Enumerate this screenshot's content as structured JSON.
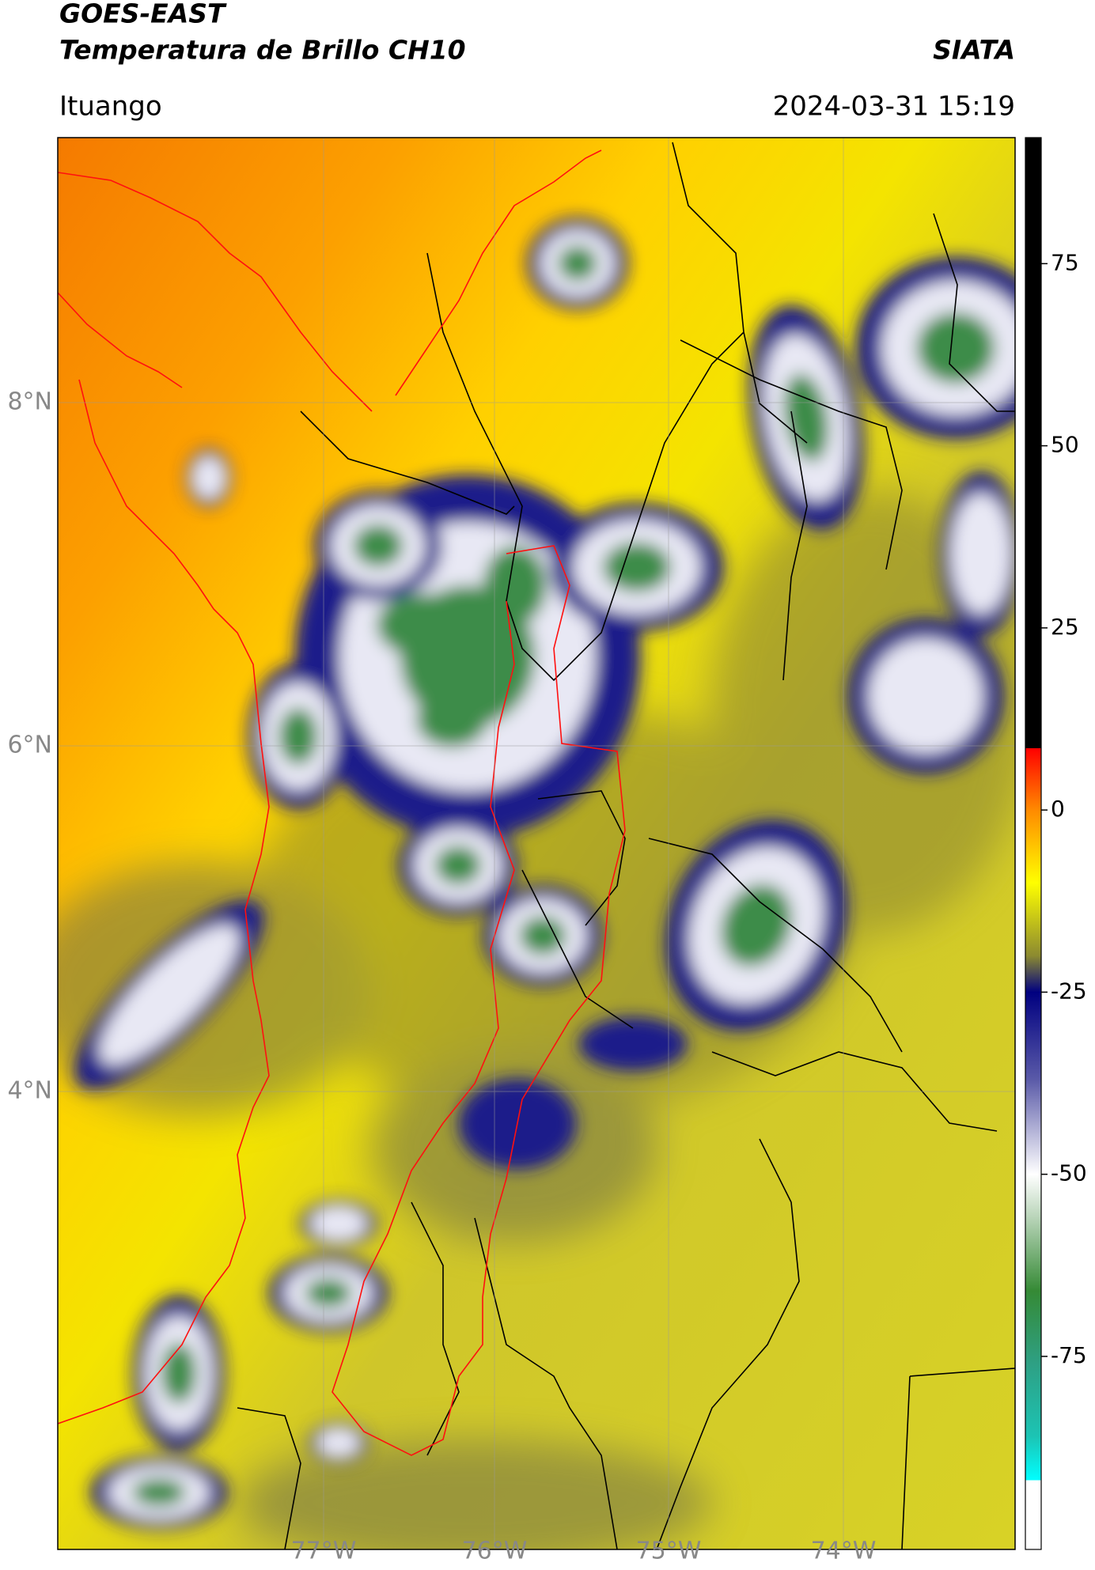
{
  "header": {
    "title_line1": "GOES-EAST",
    "title_line2": "Temperatura de Brillo CH10",
    "organization": "SIATA",
    "location": "Ituango",
    "datetime": "2024-03-31 15:19"
  },
  "map": {
    "lat_labels": [
      "8°N",
      "6°N",
      "4°N"
    ],
    "lon_labels": [
      "77°W",
      "76°W",
      "75°W",
      "74°W"
    ]
  },
  "colorbar": {
    "lim": [
      -101.5,
      92.3
    ],
    "ticks": [
      75,
      50,
      25,
      0,
      -25,
      -50,
      -75
    ],
    "stops": [
      {
        "value": 92.3,
        "color": "#000000"
      },
      {
        "value": 8.5,
        "color": "#000000"
      },
      {
        "value": 8.5,
        "color": "#ff0000"
      },
      {
        "value": 0,
        "color": "#ff8a00"
      },
      {
        "value": -10,
        "color": "#ffff00"
      },
      {
        "value": -20,
        "color": "#8c8a30"
      },
      {
        "value": -25,
        "color": "#000080"
      },
      {
        "value": -37,
        "color": "#5a5aa8"
      },
      {
        "value": -50,
        "color": "#ffffff"
      },
      {
        "value": -56,
        "color": "#b8d4b8"
      },
      {
        "value": -66,
        "color": "#358a35"
      },
      {
        "value": -76,
        "color": "#2ea084"
      },
      {
        "value": -86,
        "color": "#1cc4b4"
      },
      {
        "value": -92,
        "color": "#00ffff"
      },
      {
        "value": -92,
        "color": "#ffffff"
      },
      {
        "value": -101.5,
        "color": "#ffffff"
      }
    ]
  }
}
